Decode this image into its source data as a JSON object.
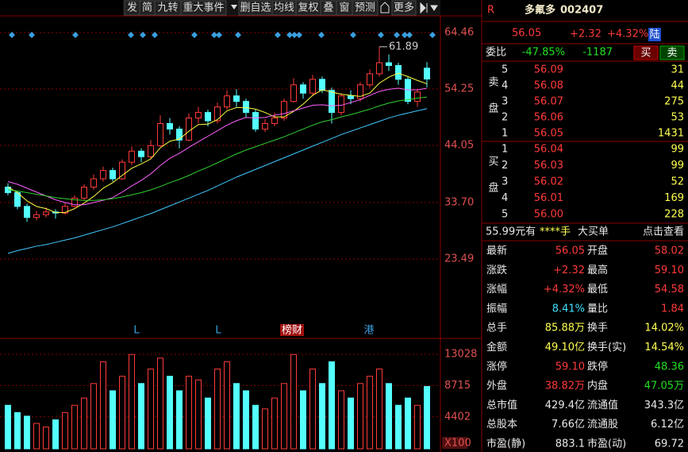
{
  "toolbar": {
    "buttons": [
      "发",
      "简",
      "九转",
      "重大事件",
      "删自选",
      "均线",
      "复权",
      "叠",
      "窗",
      "预测",
      "更多"
    ]
  },
  "chart_data": {
    "type": "candlestick",
    "candles": [
      [
        36.5,
        37.2,
        35.0,
        35.5
      ],
      [
        35.5,
        35.8,
        32.5,
        33.0
      ],
      [
        33.0,
        33.5,
        30.2,
        31.0
      ],
      [
        31.0,
        32.2,
        30.5,
        31.5
      ],
      [
        31.5,
        32.8,
        31.0,
        32.0
      ],
      [
        32.0,
        32.5,
        30.8,
        31.8
      ],
      [
        31.8,
        33.6,
        31.5,
        33.0
      ],
      [
        33.0,
        35.0,
        32.8,
        34.5
      ],
      [
        34.5,
        37.0,
        34.2,
        36.5
      ],
      [
        36.5,
        38.8,
        36.0,
        38.0
      ],
      [
        38.0,
        40.2,
        37.5,
        39.5
      ],
      [
        39.5,
        40.0,
        37.5,
        38.0
      ],
      [
        38.0,
        41.5,
        37.8,
        41.0
      ],
      [
        41.0,
        43.8,
        40.5,
        43.0
      ],
      [
        43.0,
        43.5,
        41.0,
        42.0
      ],
      [
        42.0,
        45.0,
        41.5,
        44.0
      ],
      [
        44.0,
        49.5,
        43.8,
        48.0
      ],
      [
        48.0,
        49.0,
        46.0,
        47.0
      ],
      [
        47.0,
        47.5,
        43.5,
        45.0
      ],
      [
        45.0,
        49.8,
        44.8,
        49.0
      ],
      [
        49.0,
        51.0,
        48.0,
        50.0
      ],
      [
        50.0,
        50.5,
        47.5,
        48.5
      ],
      [
        48.5,
        51.8,
        48.0,
        51.0
      ],
      [
        51.0,
        54.0,
        50.5,
        53.0
      ],
      [
        53.0,
        54.2,
        51.0,
        52.0
      ],
      [
        52.0,
        52.5,
        49.0,
        50.0
      ],
      [
        50.0,
        50.5,
        46.5,
        47.0
      ],
      [
        47.0,
        48.8,
        46.5,
        48.0
      ],
      [
        48.0,
        50.0,
        47.5,
        49.0
      ],
      [
        49.0,
        52.5,
        48.5,
        52.0
      ],
      [
        52.0,
        56.2,
        51.8,
        55.0
      ],
      [
        55.0,
        55.5,
        52.5,
        53.5
      ],
      [
        53.5,
        56.8,
        53.0,
        56.0
      ],
      [
        56.0,
        56.5,
        53.5,
        54.0
      ],
      [
        54.0,
        54.5,
        48.0,
        50.0
      ],
      [
        50.0,
        53.5,
        49.5,
        53.0
      ],
      [
        53.0,
        54.0,
        51.5,
        52.5
      ],
      [
        52.5,
        55.5,
        52.0,
        55.0
      ],
      [
        55.0,
        57.8,
        54.5,
        57.0
      ],
      [
        57.0,
        61.89,
        56.5,
        59.0
      ],
      [
        59.0,
        60.5,
        57.5,
        58.5
      ],
      [
        58.5,
        59.0,
        55.0,
        56.0
      ],
      [
        56.0,
        56.5,
        51.5,
        52.0
      ],
      [
        52.0,
        54.2,
        51.0,
        53.7
      ],
      [
        58.02,
        59.1,
        54.58,
        56.05
      ]
    ],
    "ma_lines": [
      {
        "color": "#ffff40",
        "values": [
          36.5,
          35.5,
          34.0,
          33.0,
          32.6,
          31.9,
          31.9,
          32.6,
          33.6,
          34.8,
          36.3,
          37.3,
          38.6,
          39.9,
          40.7,
          41.6,
          43.6,
          44.8,
          45.2,
          46.6,
          47.8,
          47.9,
          48.7,
          50.3,
          50.9,
          50.9,
          50.6,
          50.0,
          49.2,
          49.2,
          50.2,
          51.5,
          53.1,
          54.1,
          53.7,
          53.3,
          53.1,
          52.9,
          53.5,
          55.3,
          56.4,
          57.1,
          56.5,
          55.8,
          55.2
        ]
      },
      {
        "color": "#ff60ff",
        "values": [
          37.5,
          37.0,
          36.3,
          35.6,
          34.9,
          34.2,
          33.7,
          33.3,
          33.3,
          33.7,
          34.1,
          34.6,
          35.6,
          36.7,
          37.7,
          38.9,
          40.4,
          41.7,
          42.6,
          43.7,
          44.7,
          45.7,
          46.7,
          47.7,
          48.5,
          49.1,
          49.0,
          49.1,
          49.5,
          49.8,
          50.3,
          50.8,
          51.3,
          51.4,
          51.2,
          51.3,
          51.8,
          52.3,
          53.1,
          53.8,
          54.2,
          54.4,
          54.1,
          54.1,
          54.4
        ]
      },
      {
        "color": "#30d030",
        "values": [
          36.0,
          35.8,
          35.5,
          35.2,
          34.9,
          34.6,
          34.4,
          34.2,
          34.1,
          34.1,
          34.2,
          34.4,
          34.7,
          35.1,
          35.5,
          36.0,
          36.6,
          37.3,
          37.9,
          38.6,
          39.4,
          40.1,
          40.9,
          41.7,
          42.5,
          43.2,
          43.8,
          44.4,
          45.0,
          45.6,
          46.3,
          47.0,
          47.7,
          48.3,
          48.7,
          49.2,
          49.6,
          50.1,
          50.6,
          51.2,
          51.7,
          52.1,
          52.3,
          52.6,
          52.8
        ]
      },
      {
        "color": "#40c8ff",
        "values": [
          24.5,
          25.0,
          25.4,
          25.8,
          26.1,
          26.5,
          26.9,
          27.3,
          27.8,
          28.3,
          28.8,
          29.3,
          29.9,
          30.5,
          31.1,
          31.7,
          32.4,
          33.1,
          33.8,
          34.5,
          35.2,
          35.9,
          36.7,
          37.5,
          38.3,
          39.0,
          39.7,
          40.4,
          41.1,
          41.8,
          42.5,
          43.2,
          43.9,
          44.6,
          45.3,
          46.0,
          46.6,
          47.2,
          47.8,
          48.4,
          49.0,
          49.5,
          49.9,
          50.3,
          50.7
        ]
      }
    ],
    "max_label": "61.89",
    "ylim": [
      23.49,
      64.46
    ],
    "yticks": [
      64.46,
      54.25,
      44.05,
      {
        "value": 33.7,
        "label": "33.70"
      },
      23.49
    ],
    "events": [
      "L",
      "L",
      "榜财",
      "港"
    ],
    "volume": {
      "values": [
        6000,
        5000,
        4500,
        3500,
        3000,
        4000,
        5000,
        6000,
        7000,
        9000,
        12000,
        8000,
        10000,
        13000,
        9000,
        11000,
        12500,
        10000,
        8000,
        10000,
        9500,
        7000,
        11000,
        12000,
        9000,
        8000,
        6000,
        5500,
        7000,
        9000,
        13000,
        8000,
        11000,
        9000,
        12000,
        8000,
        7000,
        9000,
        10000,
        11000,
        9000,
        6000,
        7000,
        6000,
        8588
      ],
      "ylim": [
        0,
        13028
      ],
      "yticks": [
        13028,
        8715,
        4402
      ],
      "unit": "X100"
    }
  },
  "quote": {
    "badge": "R",
    "name": "多氟多",
    "code": "002407",
    "price": "56.05",
    "change": "+2.32",
    "pct": "+4.32%",
    "tag": "陆"
  },
  "order": {
    "label": "委比",
    "ratio": "-47.85%",
    "diff": "-1187",
    "buy": "买",
    "sell": "卖"
  },
  "asks": {
    "label": "卖盘",
    "rows": [
      [
        "5",
        "56.09",
        "31"
      ],
      [
        "4",
        "56.08",
        "44"
      ],
      [
        "3",
        "56.07",
        "275"
      ],
      [
        "2",
        "56.06",
        "53"
      ],
      [
        "1",
        "56.05",
        "1431"
      ]
    ]
  },
  "bids": {
    "label": "买盘",
    "rows": [
      [
        "1",
        "56.04",
        "99"
      ],
      [
        "2",
        "56.03",
        "99"
      ],
      [
        "3",
        "56.02",
        "52"
      ],
      [
        "4",
        "56.01",
        "169"
      ],
      [
        "5",
        "56.00",
        "228"
      ]
    ]
  },
  "big_order": [
    "55.99元有",
    "****手",
    "大买单",
    "点击查看"
  ],
  "stats": [
    [
      "最新",
      "56.05",
      "开盘",
      "58.02"
    ],
    [
      "涨跌",
      "+2.32",
      "最高",
      "59.10"
    ],
    [
      "涨幅",
      "+4.32%",
      "最低",
      "54.58"
    ],
    [
      "振幅",
      "8.41%",
      "量比",
      "1.84"
    ],
    [
      "总手",
      "85.88万",
      "换手",
      "14.02%"
    ],
    [
      "金额",
      "49.10亿",
      "换手(实)",
      "14.54%"
    ],
    [
      "涨停",
      "59.10",
      "跌停",
      "48.36"
    ],
    [
      "外盘",
      "38.82万",
      "内盘",
      "47.05万"
    ],
    [
      "总市值",
      "429.4亿",
      "流通值",
      "343.3亿"
    ],
    [
      "总股本",
      "7.66亿",
      "流通股",
      "6.12亿"
    ],
    [
      "市盈(静)",
      "883.1",
      "市盈(动)",
      "69.72"
    ]
  ]
}
